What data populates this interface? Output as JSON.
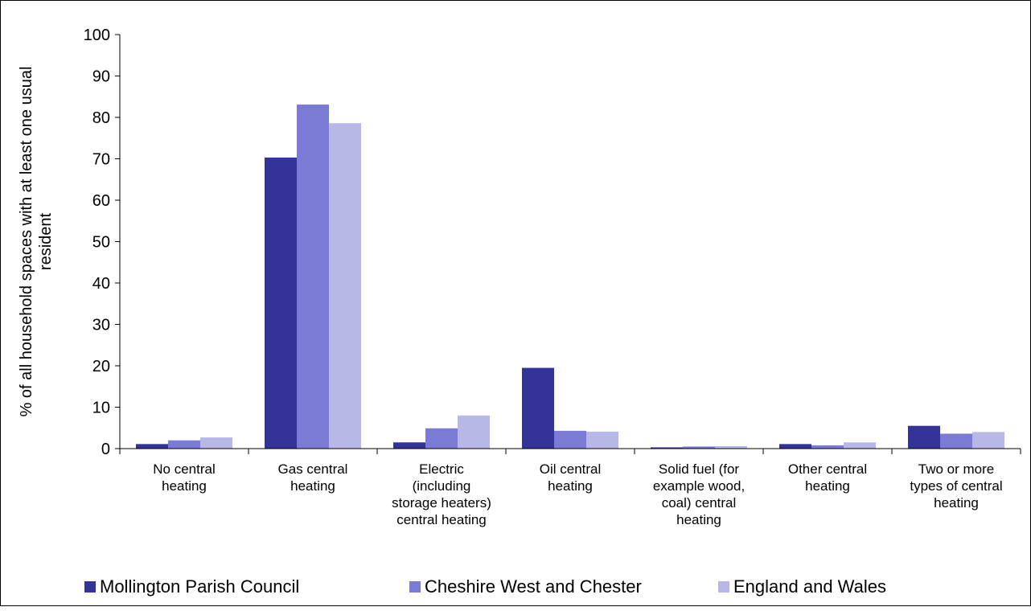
{
  "chart_data": {
    "type": "bar",
    "title": "",
    "xlabel": "",
    "ylabel": "% of all household spaces with at least one usual resident",
    "ylim": [
      0,
      100
    ],
    "yticks": [
      0,
      10,
      20,
      30,
      40,
      50,
      60,
      70,
      80,
      90,
      100
    ],
    "grid": false,
    "legend_position": "bottom",
    "categories": [
      [
        "No central",
        "heating"
      ],
      [
        "Gas central",
        "heating"
      ],
      [
        "Electric",
        "(including",
        "storage heaters)",
        "central heating"
      ],
      [
        "Oil central",
        "heating"
      ],
      [
        "Solid fuel (for",
        "example wood,",
        "coal) central",
        "heating"
      ],
      [
        "Other central",
        "heating"
      ],
      [
        "Two or more",
        "types of central",
        "heating"
      ]
    ],
    "series": [
      {
        "name": "Mollington Parish Council",
        "color": "#333399",
        "values": [
          1.1,
          70.3,
          1.5,
          19.5,
          0.3,
          1.1,
          5.5
        ]
      },
      {
        "name": "Cheshire West and Chester",
        "color": "#7b7bd5",
        "values": [
          2.0,
          83.1,
          4.9,
          4.3,
          0.5,
          0.8,
          3.6
        ]
      },
      {
        "name": "England and Wales",
        "color": "#b8b8e8",
        "values": [
          2.7,
          78.6,
          8.0,
          4.1,
          0.6,
          1.5,
          4.0
        ]
      }
    ]
  }
}
